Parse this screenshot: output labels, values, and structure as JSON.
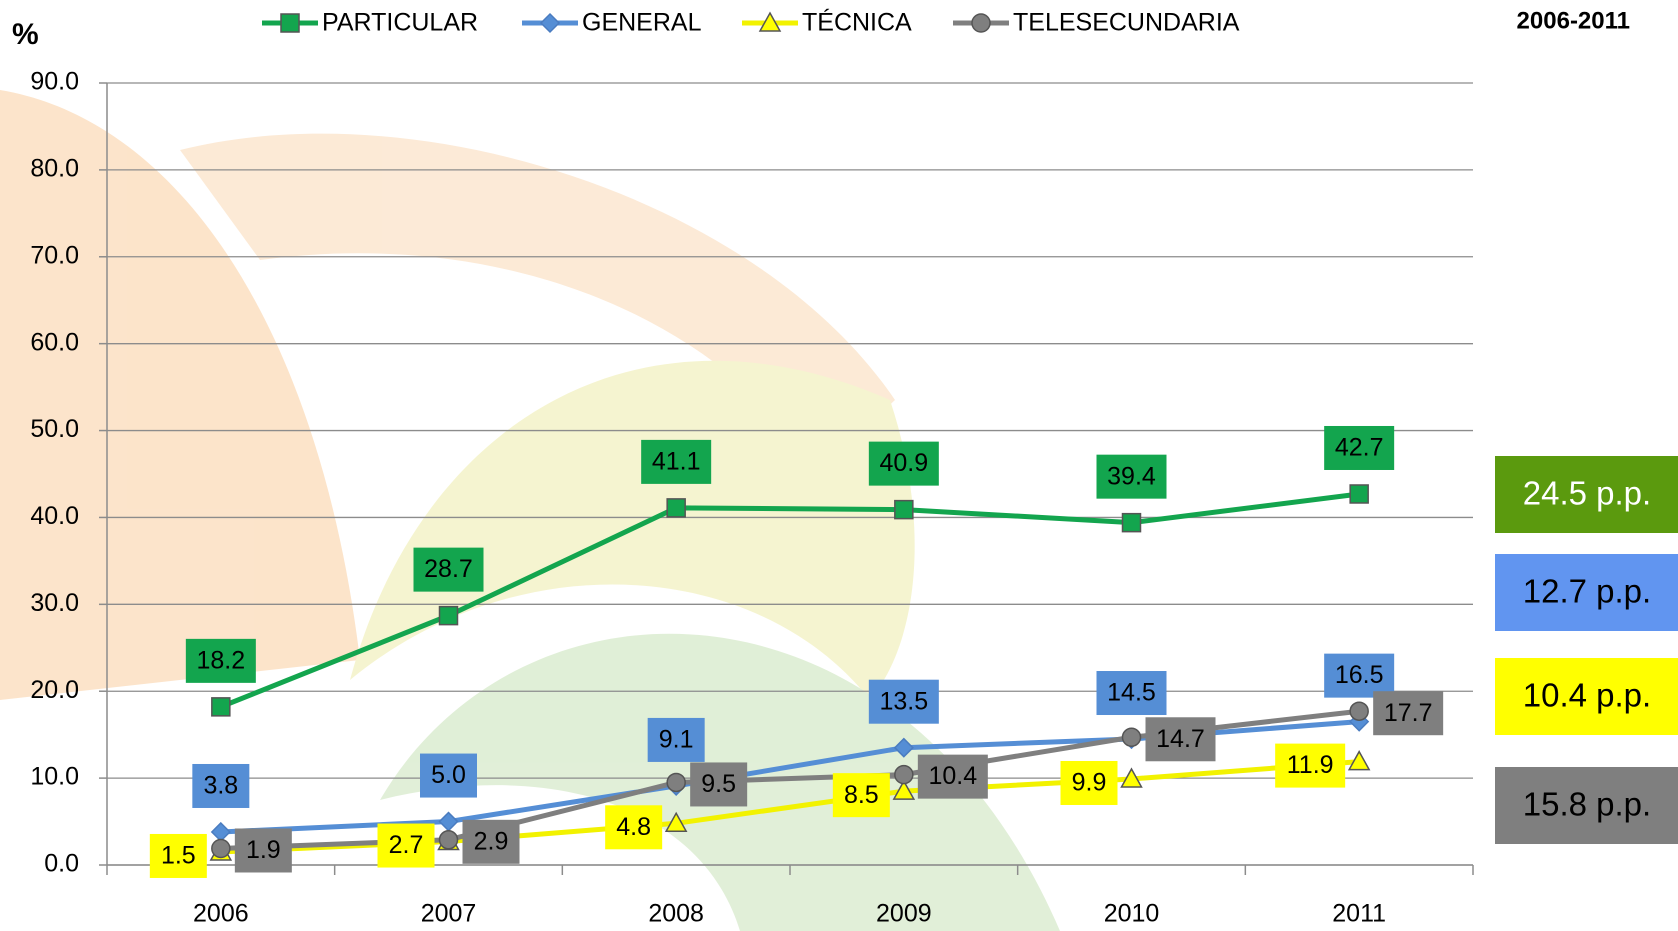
{
  "chart_data": {
    "type": "line",
    "title": "2006-2011",
    "y_label": "%",
    "categories": [
      "2006",
      "2007",
      "2008",
      "2009",
      "2010",
      "2011"
    ],
    "ylim": [
      0,
      90
    ],
    "yticks": [
      {
        "value": 0,
        "label": "0.0"
      },
      {
        "value": 10,
        "label": "10.0"
      },
      {
        "value": 20,
        "label": "20.0"
      },
      {
        "value": 30,
        "label": "30.0"
      },
      {
        "value": 40,
        "label": "40.0"
      },
      {
        "value": 50,
        "label": "50.0"
      },
      {
        "value": 60,
        "label": "60.0"
      },
      {
        "value": 70,
        "label": "70.0"
      },
      {
        "value": 80,
        "label": "80.0"
      },
      {
        "value": 90,
        "label": "90.0"
      }
    ],
    "grid": true,
    "legend": "top",
    "series": [
      {
        "name": "PARTICULAR",
        "color": "#13a54e",
        "marker": "square",
        "label_position": "top",
        "values": [
          18.2,
          28.7,
          41.1,
          40.9,
          39.4,
          42.7
        ],
        "value_labels": [
          "18.2",
          "28.7",
          "41.1",
          "40.9",
          "39.4",
          "42.7"
        ]
      },
      {
        "name": "GENERAL",
        "color": "#558ed5",
        "marker": "diamond",
        "label_position": "top",
        "values": [
          3.8,
          5.0,
          9.1,
          13.5,
          14.5,
          16.5
        ],
        "value_labels": [
          "3.8",
          "5.0",
          "9.1",
          "13.5",
          "14.5",
          "16.5"
        ]
      },
      {
        "name": "TÉCNICA",
        "color": "#ffff00",
        "marker": "triangle",
        "label_position": "left",
        "values": [
          1.5,
          2.7,
          4.8,
          8.5,
          9.9,
          11.9
        ],
        "value_labels": [
          "1.5",
          "2.7",
          "4.8",
          "8.5",
          "9.9",
          "11.9"
        ]
      },
      {
        "name": "TELESECUNDARIA",
        "color": "#7f7f7f",
        "marker": "circle",
        "label_position": "right",
        "values": [
          1.9,
          2.9,
          9.5,
          10.4,
          14.7,
          17.7
        ],
        "value_labels": [
          "1.9",
          "2.9",
          "9.5",
          "10.4",
          "14.7",
          "17.7"
        ]
      }
    ],
    "annotations": [
      {
        "text": "24.5 p.p.",
        "color": "#5b9a0e",
        "text_color": "#ffffff"
      },
      {
        "text": "12.7 p.p.",
        "color": "#6195f0",
        "text_color": "#000000"
      },
      {
        "text": "10.4 p.p.",
        "color": "#ffff00",
        "text_color": "#000000"
      },
      {
        "text": "15.8 p.p.",
        "color": "#7f7f7f",
        "text_color": "#000000"
      }
    ]
  }
}
